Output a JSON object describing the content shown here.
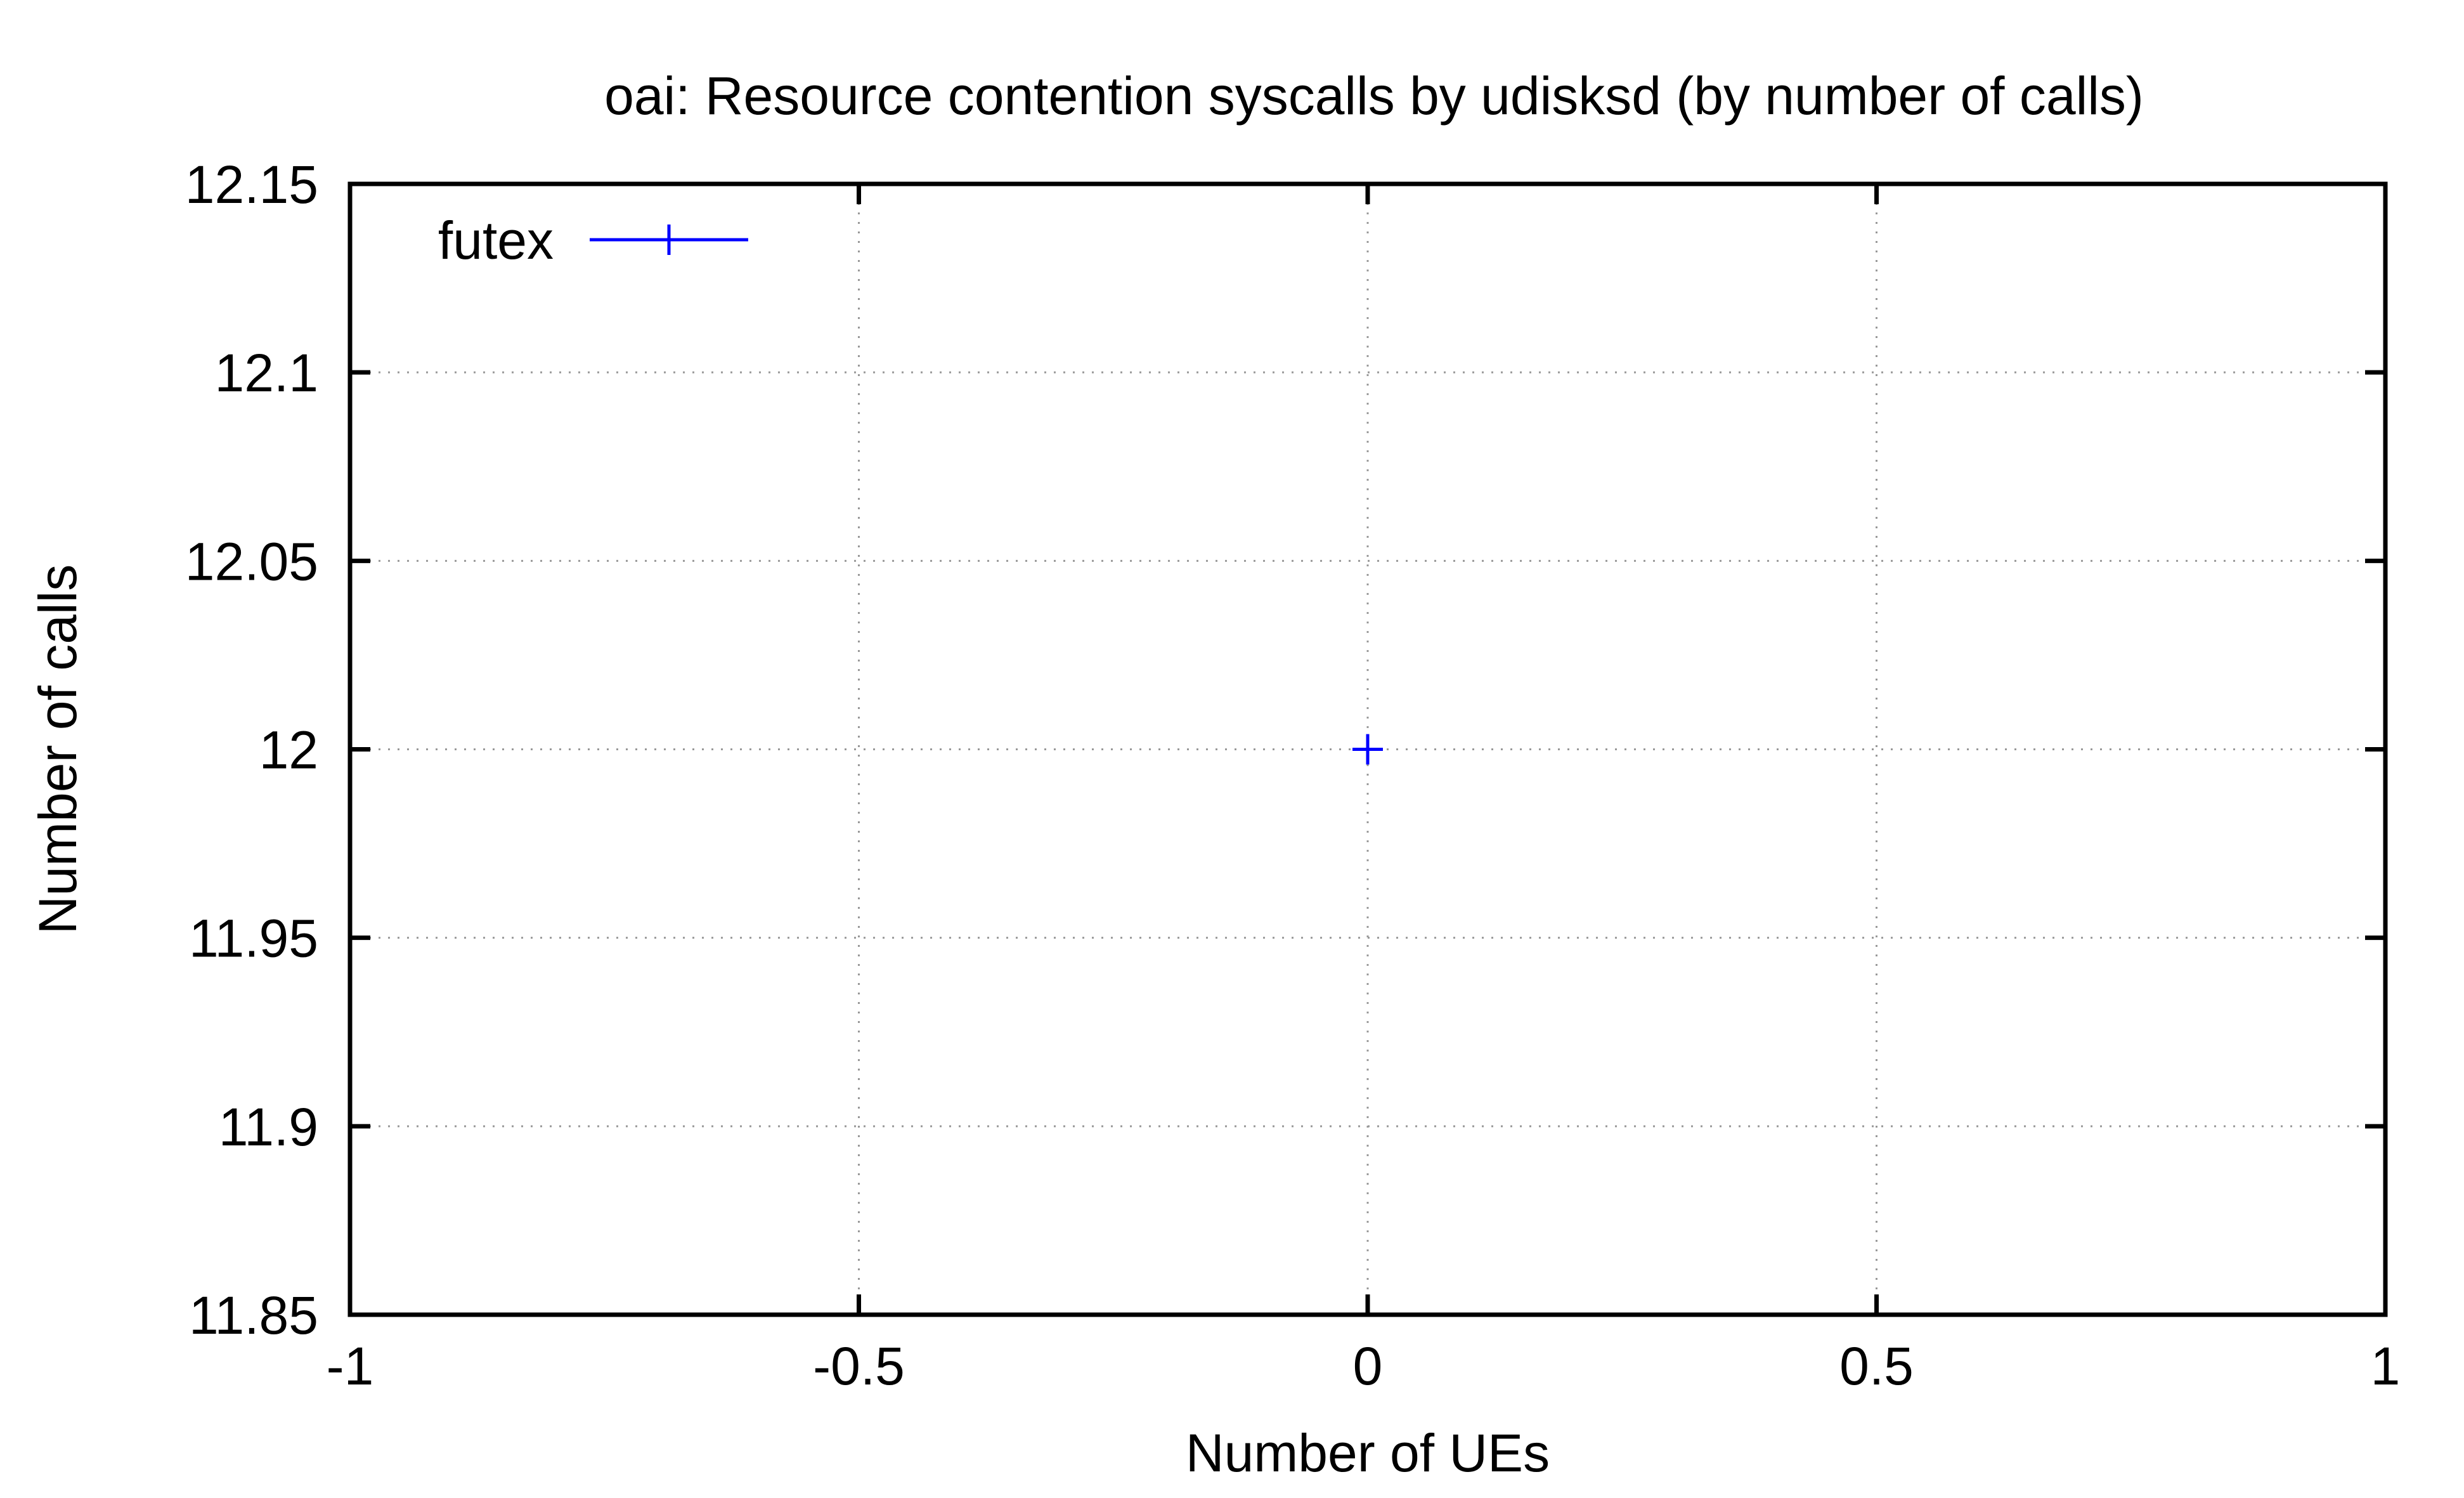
{
  "chart_data": {
    "type": "scatter",
    "title": "oai: Resource contention syscalls by udisksd (by number of calls)",
    "xlabel": "Number of UEs",
    "ylabel": "Number of calls",
    "xlim": [
      -1,
      1
    ],
    "ylim": [
      11.85,
      12.15
    ],
    "x_ticks": [
      -1,
      -0.5,
      0,
      0.5,
      1
    ],
    "x_tick_labels": [
      "-1",
      "-0.5",
      "0",
      "0.5",
      "1"
    ],
    "y_ticks": [
      11.85,
      11.9,
      11.95,
      12,
      12.05,
      12.1,
      12.15
    ],
    "y_tick_labels": [
      "11.85",
      "11.9",
      "11.95",
      "12",
      "12.05",
      "12.1",
      "12.15"
    ],
    "grid": true,
    "legend_position": "top-left",
    "series": [
      {
        "name": "futex",
        "color": "#0000ff",
        "marker": "plus",
        "points": [
          {
            "x": 0,
            "y": 12
          }
        ]
      }
    ]
  }
}
